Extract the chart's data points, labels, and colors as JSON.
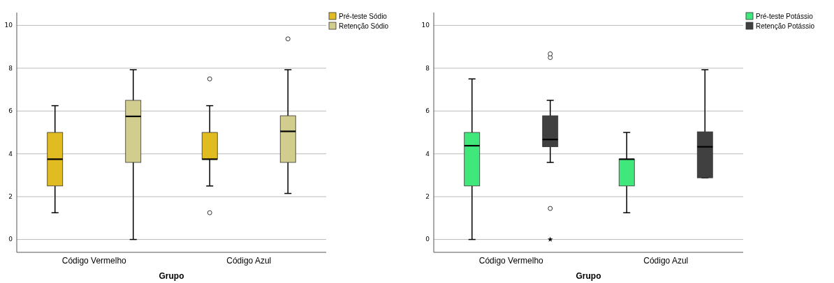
{
  "chart_data": [
    {
      "type": "box",
      "xlabel": "Grupo",
      "categories": [
        "Código Vermelho",
        "Código Azul"
      ],
      "ylim": [
        -0.6,
        10.6
      ],
      "yticks": [
        0,
        2,
        4,
        6,
        8,
        10
      ],
      "grid": "y",
      "legend": "top right",
      "series": [
        {
          "name": "Pré-teste Sódio",
          "color": "#e1bb22",
          "boxes": [
            {
              "low": 1.25,
              "q1": 2.5,
              "median": 3.75,
              "q3": 5,
              "high": 6.25
            },
            {
              "low": 2.5,
              "q1": 3.75,
              "median": 3.75,
              "q3": 5,
              "high": 6.25,
              "outliers": [
                7.5,
                1.25
              ]
            }
          ]
        },
        {
          "name": "Retenção Sódio",
          "color": "#d2cc8f",
          "boxes": [
            {
              "low": 0,
              "q1": 3.6,
              "median": 5.75,
              "q3": 6.5,
              "high": 7.93
            },
            {
              "low": 2.15,
              "q1": 3.6,
              "median": 5.05,
              "q3": 5.78,
              "high": 7.93,
              "outliers": [
                9.37
              ]
            }
          ]
        }
      ]
    },
    {
      "type": "box",
      "xlabel": "Grupo",
      "categories": [
        "Código Vermelho",
        "Código Azul"
      ],
      "ylim": [
        -0.6,
        10.6
      ],
      "yticks": [
        0,
        2,
        4,
        6,
        8,
        10
      ],
      "grid": "y",
      "legend": "top right",
      "series": [
        {
          "name": "Pré-teste Potássio",
          "color": "#40e87c",
          "boxes": [
            {
              "low": 0,
              "q1": 2.5,
              "median": 4.38,
              "q3": 5,
              "high": 7.5
            },
            {
              "low": 1.25,
              "q1": 2.5,
              "median": 3.75,
              "q3": 3.75,
              "high": 5
            }
          ]
        },
        {
          "name": "Retenção Potássio",
          "color": "#404040",
          "boxes": [
            {
              "low": 3.6,
              "q1": 4.33,
              "median": 4.67,
              "q3": 5.78,
              "high": 6.5,
              "outliers": [
                8.5,
                8.67,
                1.45,
                0
              ]
            },
            {
              "low": 2.88,
              "q1": 2.88,
              "median": 4.33,
              "q3": 5.03,
              "high": 7.93
            }
          ]
        }
      ]
    }
  ]
}
